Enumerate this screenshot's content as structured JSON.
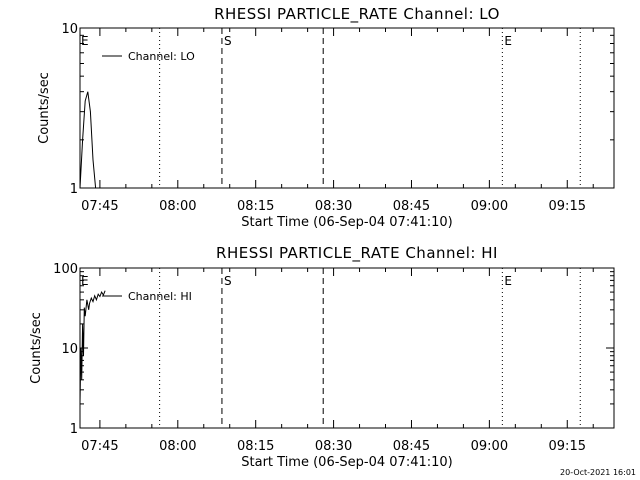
{
  "footer": {
    "timestamp": "20-Oct-2021 16:01"
  },
  "chart_data": [
    {
      "type": "line",
      "title": "RHESSI PARTICLE_RATE Channel: LO",
      "xlabel": "Start Time (06-Sep-04 07:41:10)",
      "ylabel": "Counts/sec",
      "yscale": "log",
      "xlim": [
        "07:41:10",
        "09:24:00"
      ],
      "ylim": [
        1,
        10
      ],
      "x_ticks": [
        "07:45",
        "08:00",
        "08:15",
        "08:30",
        "08:45",
        "09:00",
        "09:15"
      ],
      "y_ticks": [
        "1",
        "10"
      ],
      "legend": {
        "placement": "top-left",
        "entries": [
          "Channel: LO"
        ]
      },
      "series": [
        {
          "name": "Channel: LO",
          "x": [
            "07:41:10",
            "07:41:40",
            "07:42:10",
            "07:42:40",
            "07:43:10",
            "07:43:40",
            "07:44:10",
            "07:44:50"
          ],
          "values": [
            1.0,
            2.0,
            3.5,
            4.0,
            3.0,
            1.5,
            1.0,
            1.0
          ]
        }
      ],
      "vlines": [
        {
          "x": "07:56:30",
          "style": "dotted",
          "label": ""
        },
        {
          "x": "08:08:30",
          "style": "dashed",
          "label": "S"
        },
        {
          "x": "08:28:00",
          "style": "dashed",
          "label": ""
        },
        {
          "x": "09:02:30",
          "style": "dotted",
          "label": "E"
        },
        {
          "x": "09:17:30",
          "style": "dotted",
          "label": ""
        }
      ],
      "corner_label": "E"
    },
    {
      "type": "line",
      "title": "RHESSI PARTICLE_RATE Channel: HI",
      "xlabel": "Start Time (06-Sep-04 07:41:10)",
      "ylabel": "Counts/sec",
      "yscale": "log",
      "xlim": [
        "07:41:10",
        "09:24:00"
      ],
      "ylim": [
        1,
        100
      ],
      "x_ticks": [
        "07:45",
        "08:00",
        "08:15",
        "08:30",
        "08:45",
        "09:00",
        "09:15"
      ],
      "y_ticks": [
        "1",
        "10",
        "100"
      ],
      "legend": {
        "placement": "top-left",
        "entries": [
          "Channel: HI"
        ]
      },
      "series": [
        {
          "name": "Channel: HI",
          "x": [
            "07:41:10",
            "07:41:20",
            "07:41:30",
            "07:41:40",
            "07:41:50",
            "07:42:00",
            "07:42:10",
            "07:42:30",
            "07:42:50",
            "07:43:00",
            "07:43:20",
            "07:43:40",
            "07:44:00",
            "07:44:20",
            "07:44:40",
            "07:45:00",
            "07:45:20",
            "07:45:40",
            "07:46:00"
          ],
          "values": [
            2,
            10,
            4,
            20,
            8,
            32,
            25,
            40,
            30,
            36,
            42,
            38,
            45,
            40,
            47,
            44,
            50,
            46,
            52
          ]
        }
      ],
      "vlines": [
        {
          "x": "07:56:30",
          "style": "dotted",
          "label": ""
        },
        {
          "x": "08:08:30",
          "style": "dashed",
          "label": "S"
        },
        {
          "x": "08:28:00",
          "style": "dashed",
          "label": ""
        },
        {
          "x": "09:02:30",
          "style": "dotted",
          "label": "E"
        },
        {
          "x": "09:17:30",
          "style": "dotted",
          "label": ""
        }
      ],
      "corner_label": "E"
    }
  ]
}
